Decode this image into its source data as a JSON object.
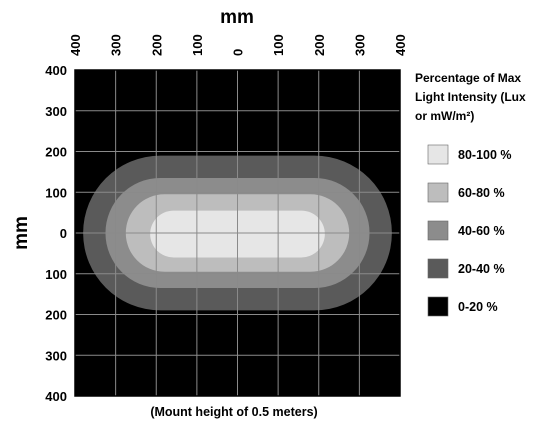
{
  "chart_data": {
    "type": "heatmap",
    "title": "",
    "xlabel": "mm",
    "ylabel": "mm",
    "caption": "(Mount height of 0.5 meters)",
    "x_ticks": [
      {
        "value": -400,
        "label": "400"
      },
      {
        "value": -300,
        "label": "300"
      },
      {
        "value": -200,
        "label": "200"
      },
      {
        "value": -100,
        "label": "100"
      },
      {
        "value": 0,
        "label": "0"
      },
      {
        "value": 100,
        "label": "100"
      },
      {
        "value": 200,
        "label": "200"
      },
      {
        "value": 300,
        "label": "300"
      },
      {
        "value": 400,
        "label": "400"
      }
    ],
    "y_ticks": [
      {
        "value": 400,
        "label": "400"
      },
      {
        "value": 300,
        "label": "300"
      },
      {
        "value": 200,
        "label": "200"
      },
      {
        "value": 100,
        "label": "100"
      },
      {
        "value": 0,
        "label": "0"
      },
      {
        "value": -100,
        "label": "100"
      },
      {
        "value": -200,
        "label": "200"
      },
      {
        "value": -300,
        "label": "300"
      },
      {
        "value": -400,
        "label": "400"
      }
    ],
    "xlim": [
      -400,
      400
    ],
    "ylim": [
      -400,
      400
    ],
    "grid": true,
    "background_color": "#000000",
    "legend": {
      "title": "Percentage of Max Light Intensity (Lux or mW/m²)",
      "title_lines": [
        "Percentage of Max",
        "Light Intensity (Lux",
        "or mW/m²)"
      ],
      "placement": "right",
      "entries": [
        {
          "label": "80-100 %",
          "color": "#e6e6e6"
        },
        {
          "label": "60-80 %",
          "color": "#bdbdbd"
        },
        {
          "label": "40-60 %",
          "color": "#8c8c8c"
        },
        {
          "label": "20-40 %",
          "color": "#5a5a5a"
        },
        {
          "label": "0-20 %",
          "color": "#000000"
        }
      ]
    },
    "contours": [
      {
        "range": "20-40 %",
        "color": "#5a5a5a",
        "x_min": -380,
        "x_max": 380,
        "y_min": -190,
        "y_max": 190
      },
      {
        "range": "40-60 %",
        "color": "#8c8c8c",
        "x_min": -325,
        "x_max": 325,
        "y_min": -135,
        "y_max": 135
      },
      {
        "range": "60-80 %",
        "color": "#bdbdbd",
        "x_min": -275,
        "x_max": 275,
        "y_min": -95,
        "y_max": 95
      },
      {
        "range": "80-100 %",
        "color": "#e6e6e6",
        "x_min": -215,
        "x_max": 215,
        "y_min": -60,
        "y_max": 55
      }
    ]
  }
}
